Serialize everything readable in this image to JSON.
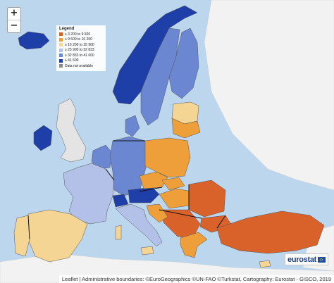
{
  "legend": {
    "title": "Legend",
    "items": [
      {
        "label": "≥ 3 200 to 9 600",
        "color": "#d9622b"
      },
      {
        "label": "≥ 9 600 to 16 200",
        "color": "#ee9f39"
      },
      {
        "label": "≥ 16 200 to 25 900",
        "color": "#f5d594"
      },
      {
        "label": "≥ 25 900 to 32 833",
        "color": "#b3c1e8"
      },
      {
        "label": "≥ 32 833 to 41 600",
        "color": "#6b87d2"
      },
      {
        "label": "≥ 41 600",
        "color": "#1e3ea8"
      },
      {
        "label": "Data not available",
        "color": "#8a8a8a"
      }
    ]
  },
  "controls": {
    "zoom_in": "+",
    "zoom_out": "−"
  },
  "attribution": "Leaflet | Administrative boundaries: ©EuroGeographics ©UN-FAO ©Turkstat, Cartography: Eurostat - GISCO, 2019",
  "logo": {
    "text": "eurostat"
  },
  "colors": {
    "sea": "#bcd6ee",
    "land_outside": "#f2f2f2",
    "no_data": "#e4e4e4"
  }
}
